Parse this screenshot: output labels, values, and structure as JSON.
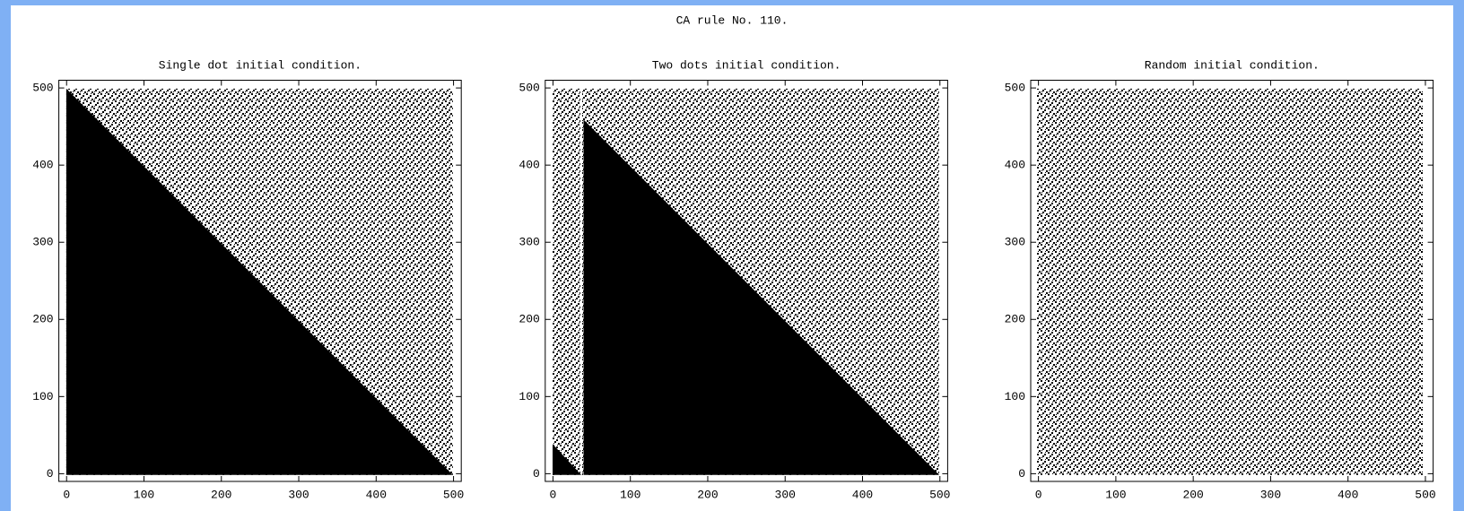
{
  "title": "CA rule No. 110.",
  "chart_data": [
    {
      "type": "cellular-automaton",
      "title": "Single dot initial condition.",
      "xlim": [
        -10,
        510
      ],
      "ylim": [
        -10,
        510
      ],
      "xticks": [
        0,
        100,
        200,
        300,
        400,
        500
      ],
      "yticks": [
        0,
        100,
        200,
        300,
        400,
        500
      ]
    },
    {
      "type": "cellular-automaton",
      "title": "Two dots initial condition.",
      "xlim": [
        -10,
        510
      ],
      "ylim": [
        -10,
        510
      ],
      "xticks": [
        0,
        100,
        200,
        300,
        400,
        500
      ],
      "yticks": [
        0,
        100,
        200,
        300,
        400,
        500
      ]
    },
    {
      "type": "cellular-automaton",
      "title": "Random initial condition.",
      "xlim": [
        -10,
        510
      ],
      "ylim": [
        -10,
        510
      ],
      "xticks": [
        0,
        100,
        200,
        300,
        400,
        500
      ],
      "yticks": [
        0,
        100,
        200,
        300,
        400,
        500
      ]
    }
  ]
}
